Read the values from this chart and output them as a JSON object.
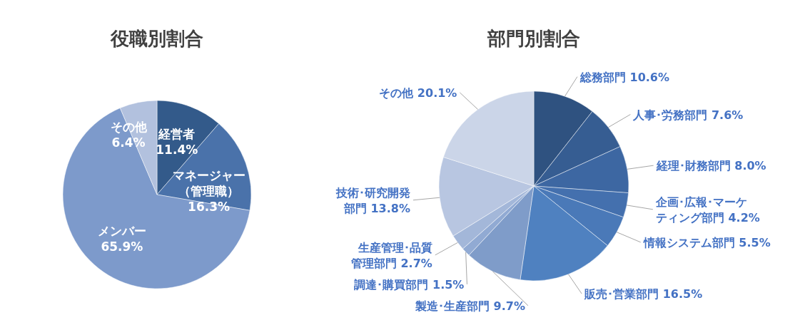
{
  "chart_data": [
    {
      "type": "pie",
      "title": "役職別割合",
      "categories": [
        "経営者",
        "マネージャー（管理職）",
        "メンバー",
        "その他"
      ],
      "values": [
        11.4,
        16.3,
        65.9,
        6.4
      ],
      "value_labels": [
        "11.4%",
        "16.3%",
        "65.9%",
        "6.4%"
      ],
      "colors": [
        "#335a8a",
        "#4a72aa",
        "#7d9acb",
        "#b2c1de"
      ]
    },
    {
      "type": "pie",
      "title": "部門別割合",
      "categories": [
        "総務部門",
        "人事･労務部門",
        "経理･財務部門",
        "企画･広報･マーケティング部門",
        "情報システム部門",
        "販売･営業部門",
        "製造･生産部門",
        "調達･購買部門",
        "生産管理･品質管理部門",
        "技術･研究開発部門",
        "その他"
      ],
      "values": [
        10.6,
        7.6,
        8.0,
        4.2,
        5.5,
        16.5,
        9.7,
        1.5,
        2.7,
        13.8,
        20.1
      ],
      "value_labels": [
        "10.6%",
        "7.6%",
        "8.0%",
        "4.2%",
        "5.5%",
        "16.5%",
        "9.7%",
        "1.5%",
        "2.7%",
        "13.8%",
        "20.1%"
      ],
      "colors": [
        "#2f5280",
        "#365d92",
        "#3d67a2",
        "#4470ae",
        "#4a79b8",
        "#4f81c0",
        "#7f9cc9",
        "#91aad3",
        "#a3b7d9",
        "#b8c6e1",
        "#cbd5e8"
      ]
    }
  ]
}
